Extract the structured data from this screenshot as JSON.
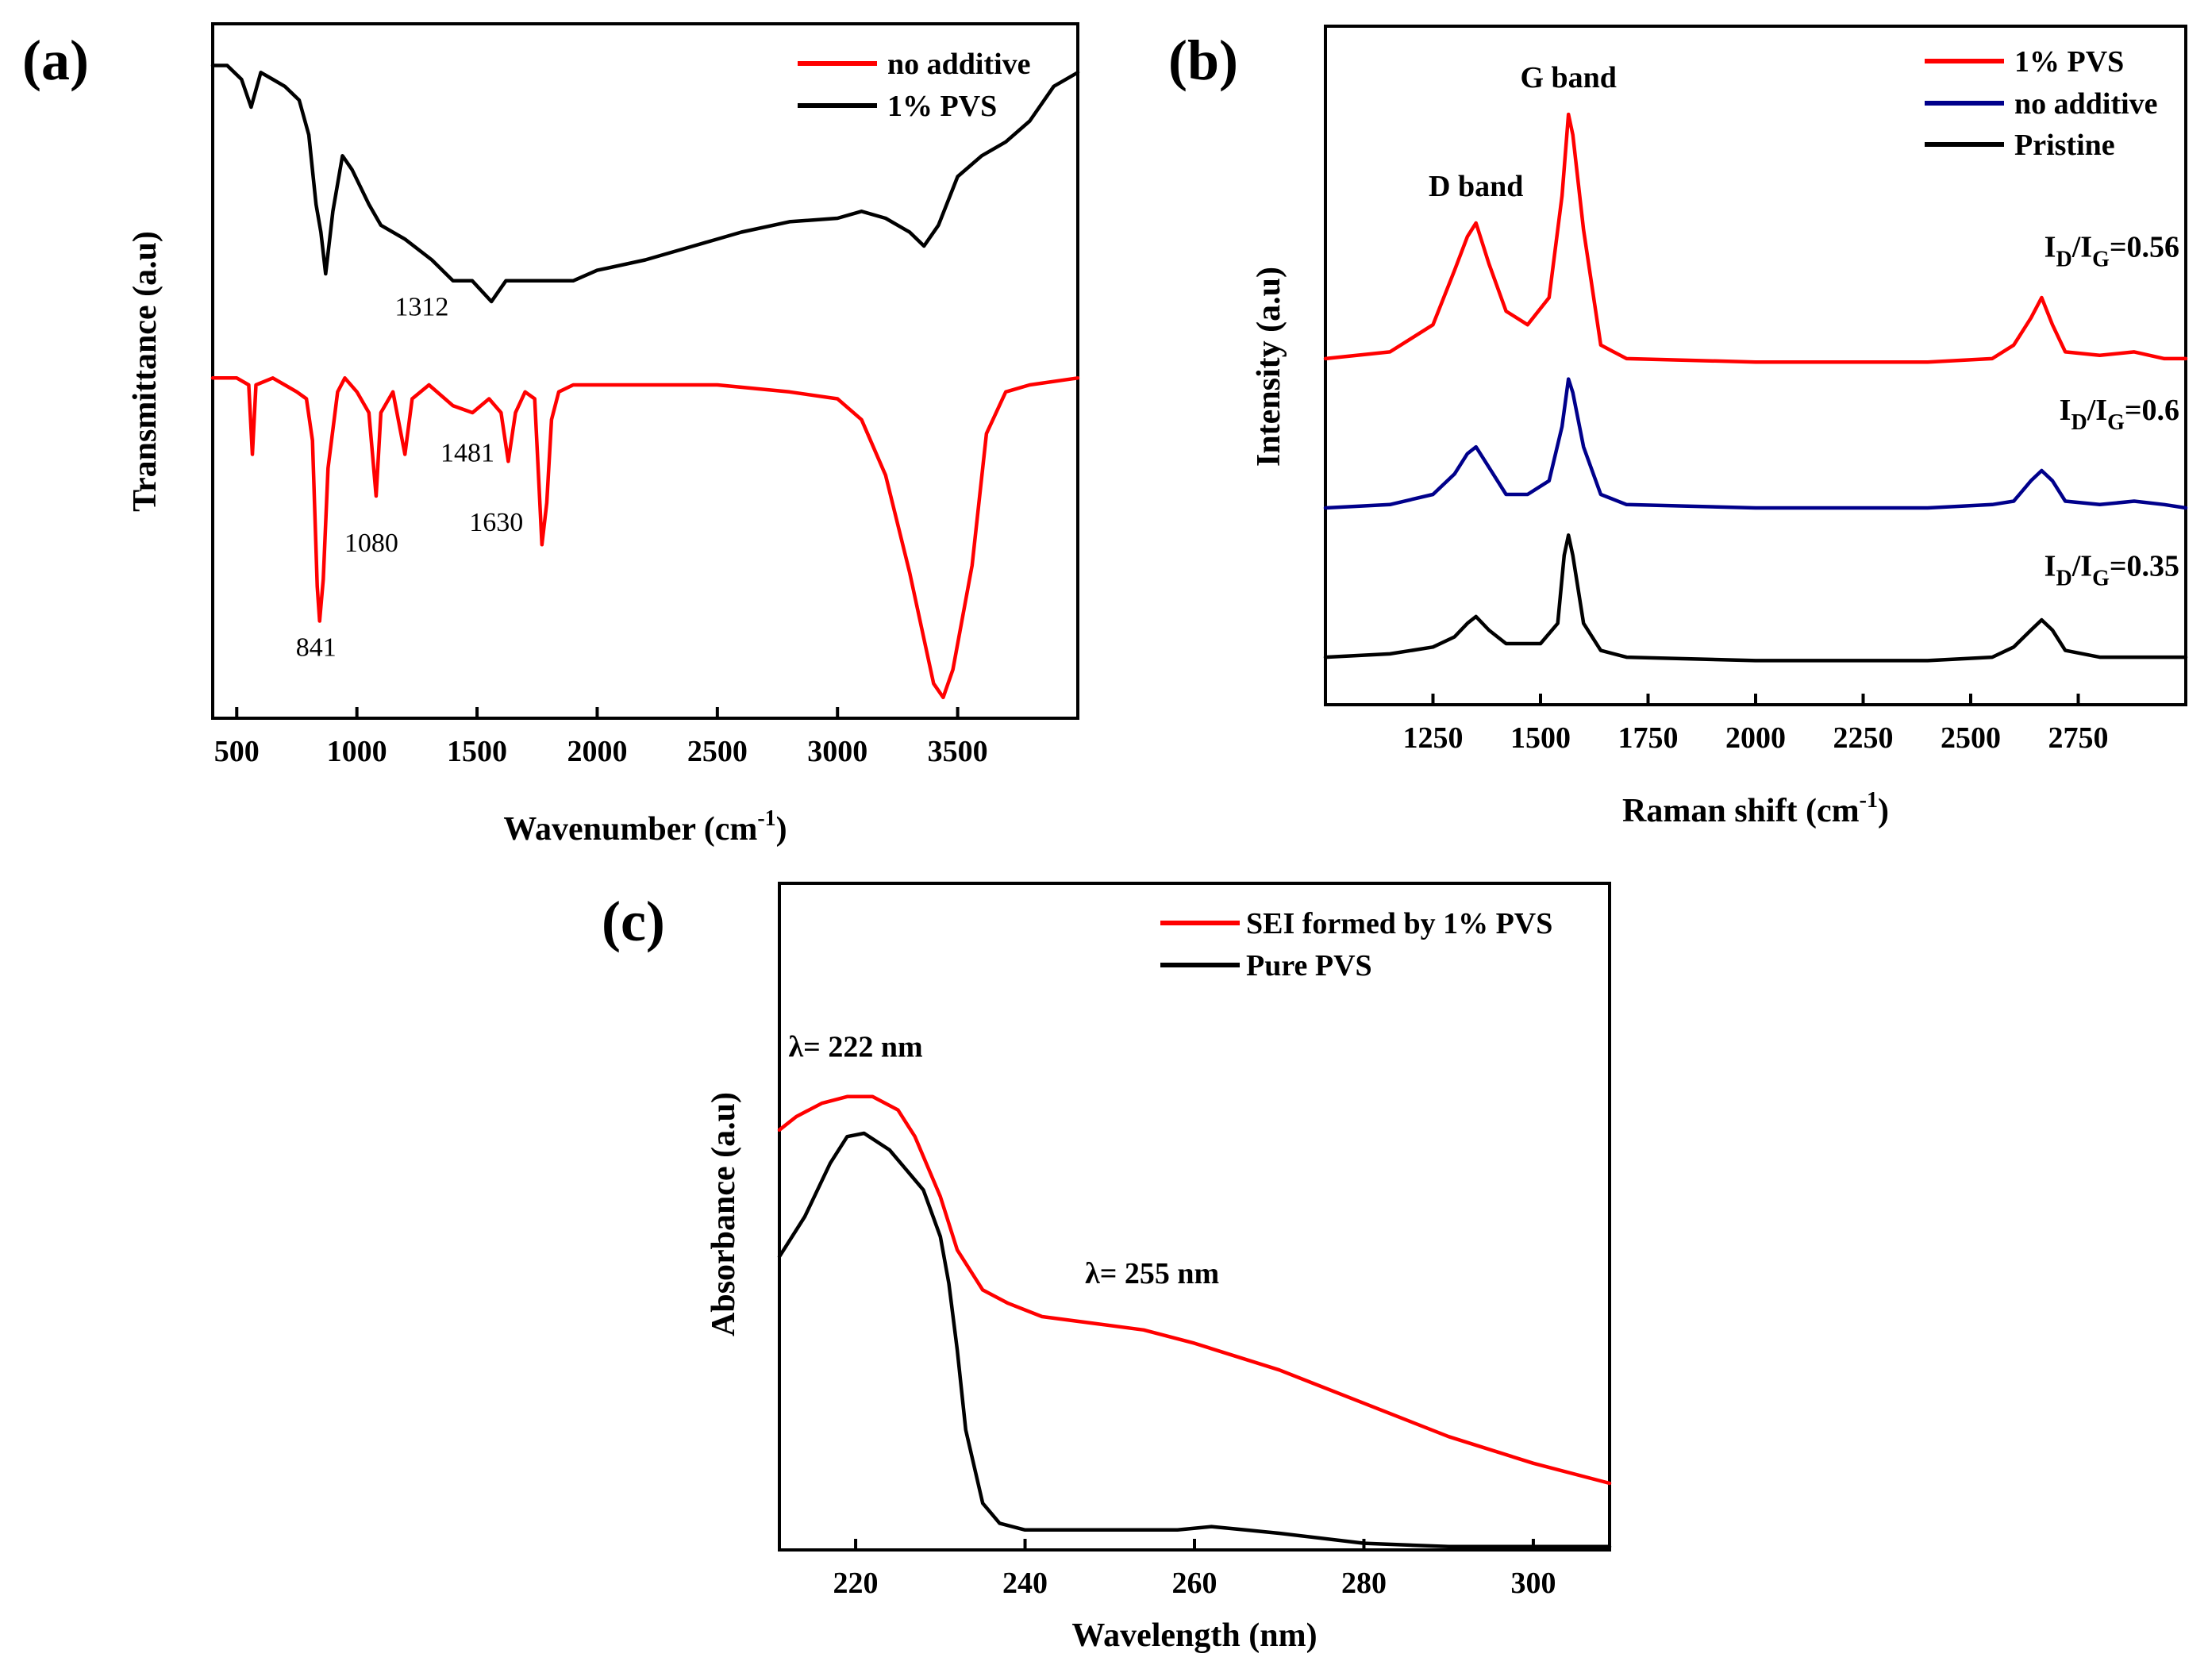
{
  "colors": {
    "red": "#ff0000",
    "black": "#000000",
    "navy": "#00008b"
  },
  "chart_data": [
    {
      "panel": "(a)",
      "type": "line",
      "xlabel_main": "Wavenumber (cm",
      "xlabel_sup": "-1",
      "xlabel_end": ")",
      "ylabel": "Transmittance (a.u)",
      "xlim": [
        400,
        4000
      ],
      "ylim": [
        0,
        1
      ],
      "xticks": [
        500,
        1000,
        1500,
        2000,
        2500,
        3000,
        3500
      ],
      "legend": [
        "no additive",
        "1% PVS"
      ],
      "legend_position": "top-right",
      "series": [
        {
          "name": "1% PVS",
          "color": "#000000",
          "points": [
            [
              400,
              0.94
            ],
            [
              460,
              0.94
            ],
            [
              520,
              0.92
            ],
            [
              560,
              0.88
            ],
            [
              600,
              0.93
            ],
            [
              650,
              0.92
            ],
            [
              700,
              0.91
            ],
            [
              760,
              0.89
            ],
            [
              800,
              0.84
            ],
            [
              830,
              0.74
            ],
            [
              850,
              0.7
            ],
            [
              870,
              0.64
            ],
            [
              890,
              0.7
            ],
            [
              900,
              0.73
            ],
            [
              940,
              0.81
            ],
            [
              980,
              0.79
            ],
            [
              1050,
              0.74
            ],
            [
              1100,
              0.71
            ],
            [
              1200,
              0.69
            ],
            [
              1312,
              0.66
            ],
            [
              1400,
              0.63
            ],
            [
              1480,
              0.63
            ],
            [
              1560,
              0.6
            ],
            [
              1620,
              0.63
            ],
            [
              1700,
              0.63
            ],
            [
              1800,
              0.63
            ],
            [
              1900,
              0.63
            ],
            [
              2000,
              0.645
            ],
            [
              2200,
              0.66
            ],
            [
              2400,
              0.68
            ],
            [
              2600,
              0.7
            ],
            [
              2800,
              0.715
            ],
            [
              3000,
              0.72
            ],
            [
              3100,
              0.73
            ],
            [
              3200,
              0.72
            ],
            [
              3300,
              0.7
            ],
            [
              3360,
              0.68
            ],
            [
              3420,
              0.71
            ],
            [
              3500,
              0.78
            ],
            [
              3600,
              0.81
            ],
            [
              3700,
              0.83
            ],
            [
              3800,
              0.86
            ],
            [
              3900,
              0.91
            ],
            [
              4000,
              0.93
            ]
          ]
        },
        {
          "name": "no additive",
          "color": "#ff0000",
          "points": [
            [
              400,
              0.49
            ],
            [
              500,
              0.49
            ],
            [
              550,
              0.48
            ],
            [
              565,
              0.38
            ],
            [
              580,
              0.48
            ],
            [
              650,
              0.49
            ],
            [
              700,
              0.48
            ],
            [
              750,
              0.47
            ],
            [
              790,
              0.46
            ],
            [
              815,
              0.4
            ],
            [
              835,
              0.19
            ],
            [
              845,
              0.14
            ],
            [
              860,
              0.2
            ],
            [
              880,
              0.36
            ],
            [
              920,
              0.47
            ],
            [
              950,
              0.49
            ],
            [
              1000,
              0.47
            ],
            [
              1050,
              0.44
            ],
            [
              1080,
              0.32
            ],
            [
              1100,
              0.44
            ],
            [
              1150,
              0.47
            ],
            [
              1200,
              0.38
            ],
            [
              1230,
              0.46
            ],
            [
              1300,
              0.48
            ],
            [
              1400,
              0.45
            ],
            [
              1481,
              0.44
            ],
            [
              1550,
              0.46
            ],
            [
              1600,
              0.44
            ],
            [
              1630,
              0.37
            ],
            [
              1660,
              0.44
            ],
            [
              1700,
              0.47
            ],
            [
              1740,
              0.46
            ],
            [
              1770,
              0.25
            ],
            [
              1790,
              0.31
            ],
            [
              1810,
              0.43
            ],
            [
              1840,
              0.47
            ],
            [
              1900,
              0.48
            ],
            [
              2000,
              0.48
            ],
            [
              2500,
              0.48
            ],
            [
              2800,
              0.47
            ],
            [
              3000,
              0.46
            ],
            [
              3100,
              0.43
            ],
            [
              3200,
              0.35
            ],
            [
              3300,
              0.21
            ],
            [
              3400,
              0.05
            ],
            [
              3440,
              0.03
            ],
            [
              3480,
              0.07
            ],
            [
              3560,
              0.22
            ],
            [
              3620,
              0.41
            ],
            [
              3700,
              0.47
            ],
            [
              3800,
              0.48
            ],
            [
              4000,
              0.49
            ]
          ]
        }
      ],
      "annotations": [
        {
          "text": "1312",
          "x": 1270,
          "y": 0.58
        },
        {
          "text": "1481",
          "x": 1460,
          "y": 0.37
        },
        {
          "text": "1080",
          "x": 1060,
          "y": 0.24
        },
        {
          "text": "1630",
          "x": 1580,
          "y": 0.27
        },
        {
          "text": "841",
          "x": 830,
          "y": 0.09
        }
      ]
    },
    {
      "panel": "(b)",
      "type": "line",
      "xlabel_main": "Raman shift (cm",
      "xlabel_sup": "-1",
      "xlabel_end": ")",
      "ylabel": "Intensity (a.u)",
      "xlim": [
        1000,
        3000
      ],
      "ylim": [
        0,
        1
      ],
      "xticks": [
        1250,
        1500,
        1750,
        2000,
        2250,
        2500,
        2750
      ],
      "legend": [
        "1% PVS",
        "no additive",
        "Pristine"
      ],
      "legend_position": "top-right",
      "series": [
        {
          "name": "1% PVS",
          "color": "#ff0000",
          "points": [
            [
              1000,
              0.51
            ],
            [
              1150,
              0.52
            ],
            [
              1250,
              0.56
            ],
            [
              1300,
              0.64
            ],
            [
              1330,
              0.69
            ],
            [
              1350,
              0.71
            ],
            [
              1380,
              0.65
            ],
            [
              1420,
              0.58
            ],
            [
              1470,
              0.56
            ],
            [
              1520,
              0.6
            ],
            [
              1550,
              0.75
            ],
            [
              1565,
              0.87
            ],
            [
              1575,
              0.84
            ],
            [
              1600,
              0.7
            ],
            [
              1640,
              0.53
            ],
            [
              1700,
              0.51
            ],
            [
              2000,
              0.505
            ],
            [
              2400,
              0.505
            ],
            [
              2550,
              0.51
            ],
            [
              2600,
              0.53
            ],
            [
              2640,
              0.57
            ],
            [
              2665,
              0.6
            ],
            [
              2690,
              0.56
            ],
            [
              2720,
              0.52
            ],
            [
              2800,
              0.515
            ],
            [
              2880,
              0.52
            ],
            [
              2950,
              0.51
            ],
            [
              3000,
              0.51
            ]
          ]
        },
        {
          "name": "no additive",
          "color": "#00008b",
          "points": [
            [
              1000,
              0.29
            ],
            [
              1150,
              0.295
            ],
            [
              1250,
              0.31
            ],
            [
              1300,
              0.34
            ],
            [
              1330,
              0.37
            ],
            [
              1350,
              0.38
            ],
            [
              1380,
              0.35
            ],
            [
              1420,
              0.31
            ],
            [
              1470,
              0.31
            ],
            [
              1520,
              0.33
            ],
            [
              1550,
              0.41
            ],
            [
              1565,
              0.48
            ],
            [
              1575,
              0.46
            ],
            [
              1600,
              0.38
            ],
            [
              1640,
              0.31
            ],
            [
              1700,
              0.295
            ],
            [
              2000,
              0.29
            ],
            [
              2400,
              0.29
            ],
            [
              2550,
              0.295
            ],
            [
              2600,
              0.3
            ],
            [
              2640,
              0.33
            ],
            [
              2665,
              0.345
            ],
            [
              2690,
              0.33
            ],
            [
              2720,
              0.3
            ],
            [
              2800,
              0.295
            ],
            [
              2880,
              0.3
            ],
            [
              2950,
              0.295
            ],
            [
              3000,
              0.29
            ]
          ]
        },
        {
          "name": "Pristine",
          "color": "#000000",
          "points": [
            [
              1000,
              0.07
            ],
            [
              1150,
              0.075
            ],
            [
              1250,
              0.085
            ],
            [
              1300,
              0.1
            ],
            [
              1330,
              0.12
            ],
            [
              1350,
              0.13
            ],
            [
              1380,
              0.11
            ],
            [
              1420,
              0.09
            ],
            [
              1500,
              0.09
            ],
            [
              1540,
              0.12
            ],
            [
              1555,
              0.22
            ],
            [
              1565,
              0.25
            ],
            [
              1575,
              0.22
            ],
            [
              1600,
              0.12
            ],
            [
              1640,
              0.08
            ],
            [
              1700,
              0.07
            ],
            [
              2000,
              0.065
            ],
            [
              2400,
              0.065
            ],
            [
              2550,
              0.07
            ],
            [
              2600,
              0.085
            ],
            [
              2640,
              0.11
            ],
            [
              2665,
              0.125
            ],
            [
              2690,
              0.11
            ],
            [
              2720,
              0.08
            ],
            [
              2800,
              0.07
            ],
            [
              3000,
              0.07
            ]
          ]
        }
      ],
      "band_labels": [
        {
          "text": "D band",
          "x": 1350,
          "y": 0.75
        },
        {
          "text": "G band",
          "x": 1565,
          "y": 0.91
        }
      ],
      "ratio_labels": [
        {
          "main": "I",
          "sub1": "D",
          "mid": "/I",
          "sub2": "G",
          "val": "=0.56",
          "y": 0.66
        },
        {
          "main": "I",
          "sub1": "D",
          "mid": "/I",
          "sub2": "G",
          "val": "=0.6",
          "y": 0.42
        },
        {
          "main": "I",
          "sub1": "D",
          "mid": "/I",
          "sub2": "G",
          "val": "=0.35",
          "y": 0.19
        }
      ]
    },
    {
      "panel": "(c)",
      "type": "line",
      "xlabel": "Wavelength (nm)",
      "ylabel": "Absorbance (a.u)",
      "xlim": [
        211,
        309
      ],
      "ylim": [
        0,
        1
      ],
      "xticks": [
        220,
        240,
        260,
        280,
        300
      ],
      "legend": [
        "SEI formed by 1% PVS",
        "Pure PVS"
      ],
      "legend_position": "top-right",
      "series": [
        {
          "name": "SEI formed by 1% PVS",
          "color": "#ff0000",
          "points": [
            [
              211,
              0.63
            ],
            [
              213,
              0.65
            ],
            [
              216,
              0.67
            ],
            [
              219,
              0.68
            ],
            [
              222,
              0.68
            ],
            [
              225,
              0.66
            ],
            [
              227,
              0.62
            ],
            [
              230,
              0.53
            ],
            [
              232,
              0.45
            ],
            [
              235,
              0.39
            ],
            [
              238,
              0.37
            ],
            [
              242,
              0.35
            ],
            [
              248,
              0.34
            ],
            [
              254,
              0.33
            ],
            [
              260,
              0.31
            ],
            [
              270,
              0.27
            ],
            [
              280,
              0.22
            ],
            [
              290,
              0.17
            ],
            [
              300,
              0.13
            ],
            [
              309,
              0.1
            ]
          ]
        },
        {
          "name": "Pure PVS",
          "color": "#000000",
          "points": [
            [
              211,
              0.44
            ],
            [
              214,
              0.5
            ],
            [
              217,
              0.58
            ],
            [
              219,
              0.62
            ],
            [
              221,
              0.625
            ],
            [
              224,
              0.6
            ],
            [
              228,
              0.54
            ],
            [
              230,
              0.47
            ],
            [
              231,
              0.4
            ],
            [
              232,
              0.3
            ],
            [
              233,
              0.18
            ],
            [
              235,
              0.07
            ],
            [
              237,
              0.04
            ],
            [
              240,
              0.03
            ],
            [
              250,
              0.03
            ],
            [
              258,
              0.03
            ],
            [
              262,
              0.035
            ],
            [
              266,
              0.03
            ],
            [
              270,
              0.025
            ],
            [
              280,
              0.01
            ],
            [
              290,
              0.005
            ],
            [
              300,
              0.005
            ],
            [
              309,
              0.005
            ]
          ]
        }
      ],
      "annotations": [
        {
          "text": "λ= 222 nm",
          "x": 220,
          "y": 0.74
        },
        {
          "text": "λ= 255 nm",
          "x": 255,
          "y": 0.4
        }
      ]
    }
  ]
}
